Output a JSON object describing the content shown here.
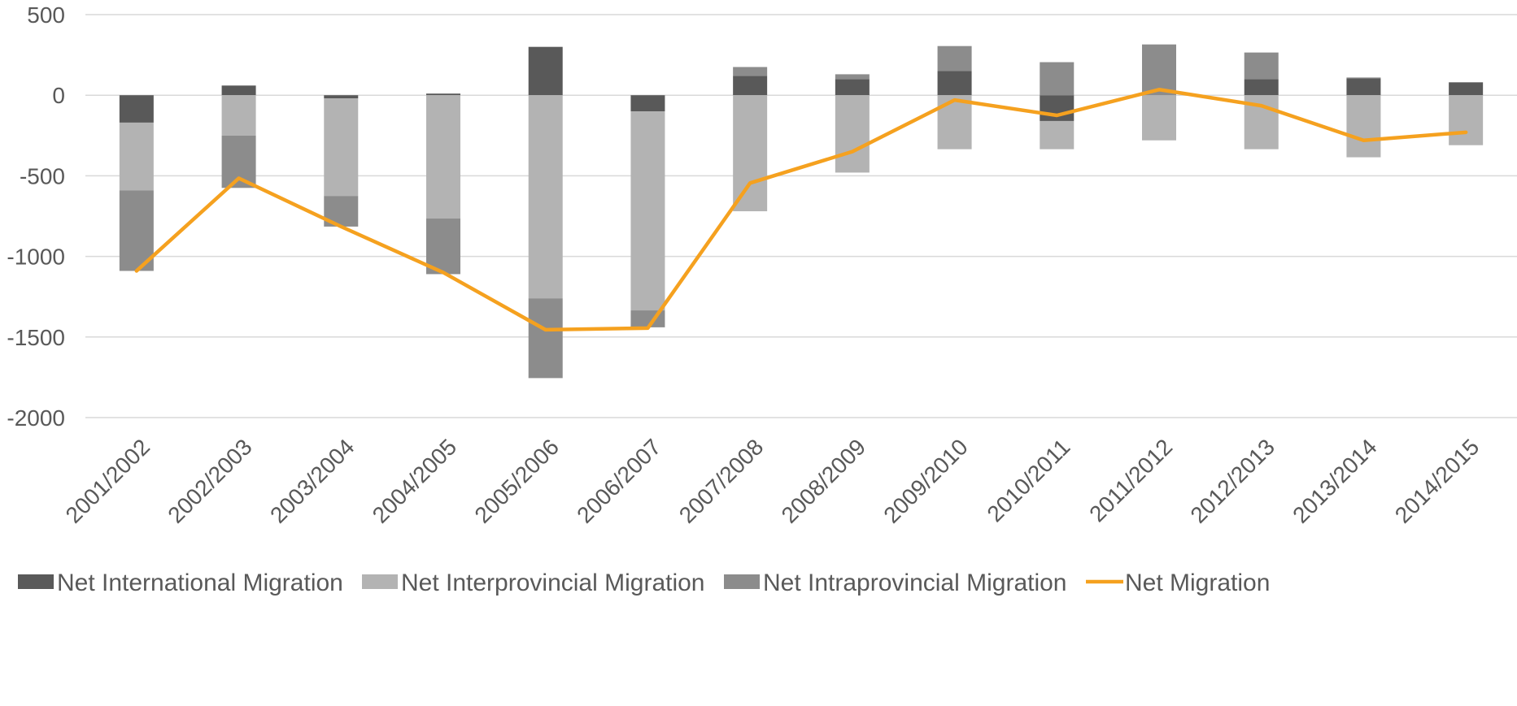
{
  "chart_data": {
    "type": "bar",
    "stacked": true,
    "categories": [
      "2001/2002",
      "2002/2003",
      "2003/2004",
      "2004/2005",
      "2005/2006",
      "2006/2007",
      "2007/2008",
      "2008/2009",
      "2009/2010",
      "2010/2011",
      "2011/2012",
      "2012/2013",
      "2013/2014",
      "2014/2015"
    ],
    "series": [
      {
        "name": "Net International Migration",
        "kind": "bar",
        "color": "#595959",
        "values": [
          -170,
          60,
          -20,
          10,
          300,
          -100,
          120,
          100,
          150,
          -160,
          0,
          100,
          105,
          80
        ]
      },
      {
        "name": "Net Interprovincial Migration",
        "kind": "bar",
        "color": "#b3b3b3",
        "values": [
          -420,
          -250,
          -605,
          -765,
          -1260,
          -1235,
          -720,
          -480,
          -335,
          -175,
          -280,
          -335,
          -385,
          -310
        ]
      },
      {
        "name": "Net Intraprovincial Migration",
        "kind": "bar",
        "color": "#8c8c8c",
        "values": [
          -500,
          -325,
          -190,
          -345,
          -495,
          -105,
          55,
          30,
          155,
          205,
          315,
          165,
          5,
          0
        ]
      },
      {
        "name": "Net Migration",
        "kind": "line",
        "color": "#f5a11f",
        "values": [
          -1090,
          -515,
          -815,
          -1100,
          -1455,
          -1445,
          -545,
          -350,
          -30,
          -125,
          35,
          -65,
          -280,
          -230
        ]
      }
    ],
    "ylim": [
      -2000,
      500
    ],
    "yticks": [
      "500",
      "0",
      "-500",
      "-1000",
      "-1500",
      "-2000"
    ],
    "ytick_values": [
      500,
      0,
      -500,
      -1000,
      -1500,
      -2000
    ],
    "grid": true,
    "legend": "bottom"
  }
}
